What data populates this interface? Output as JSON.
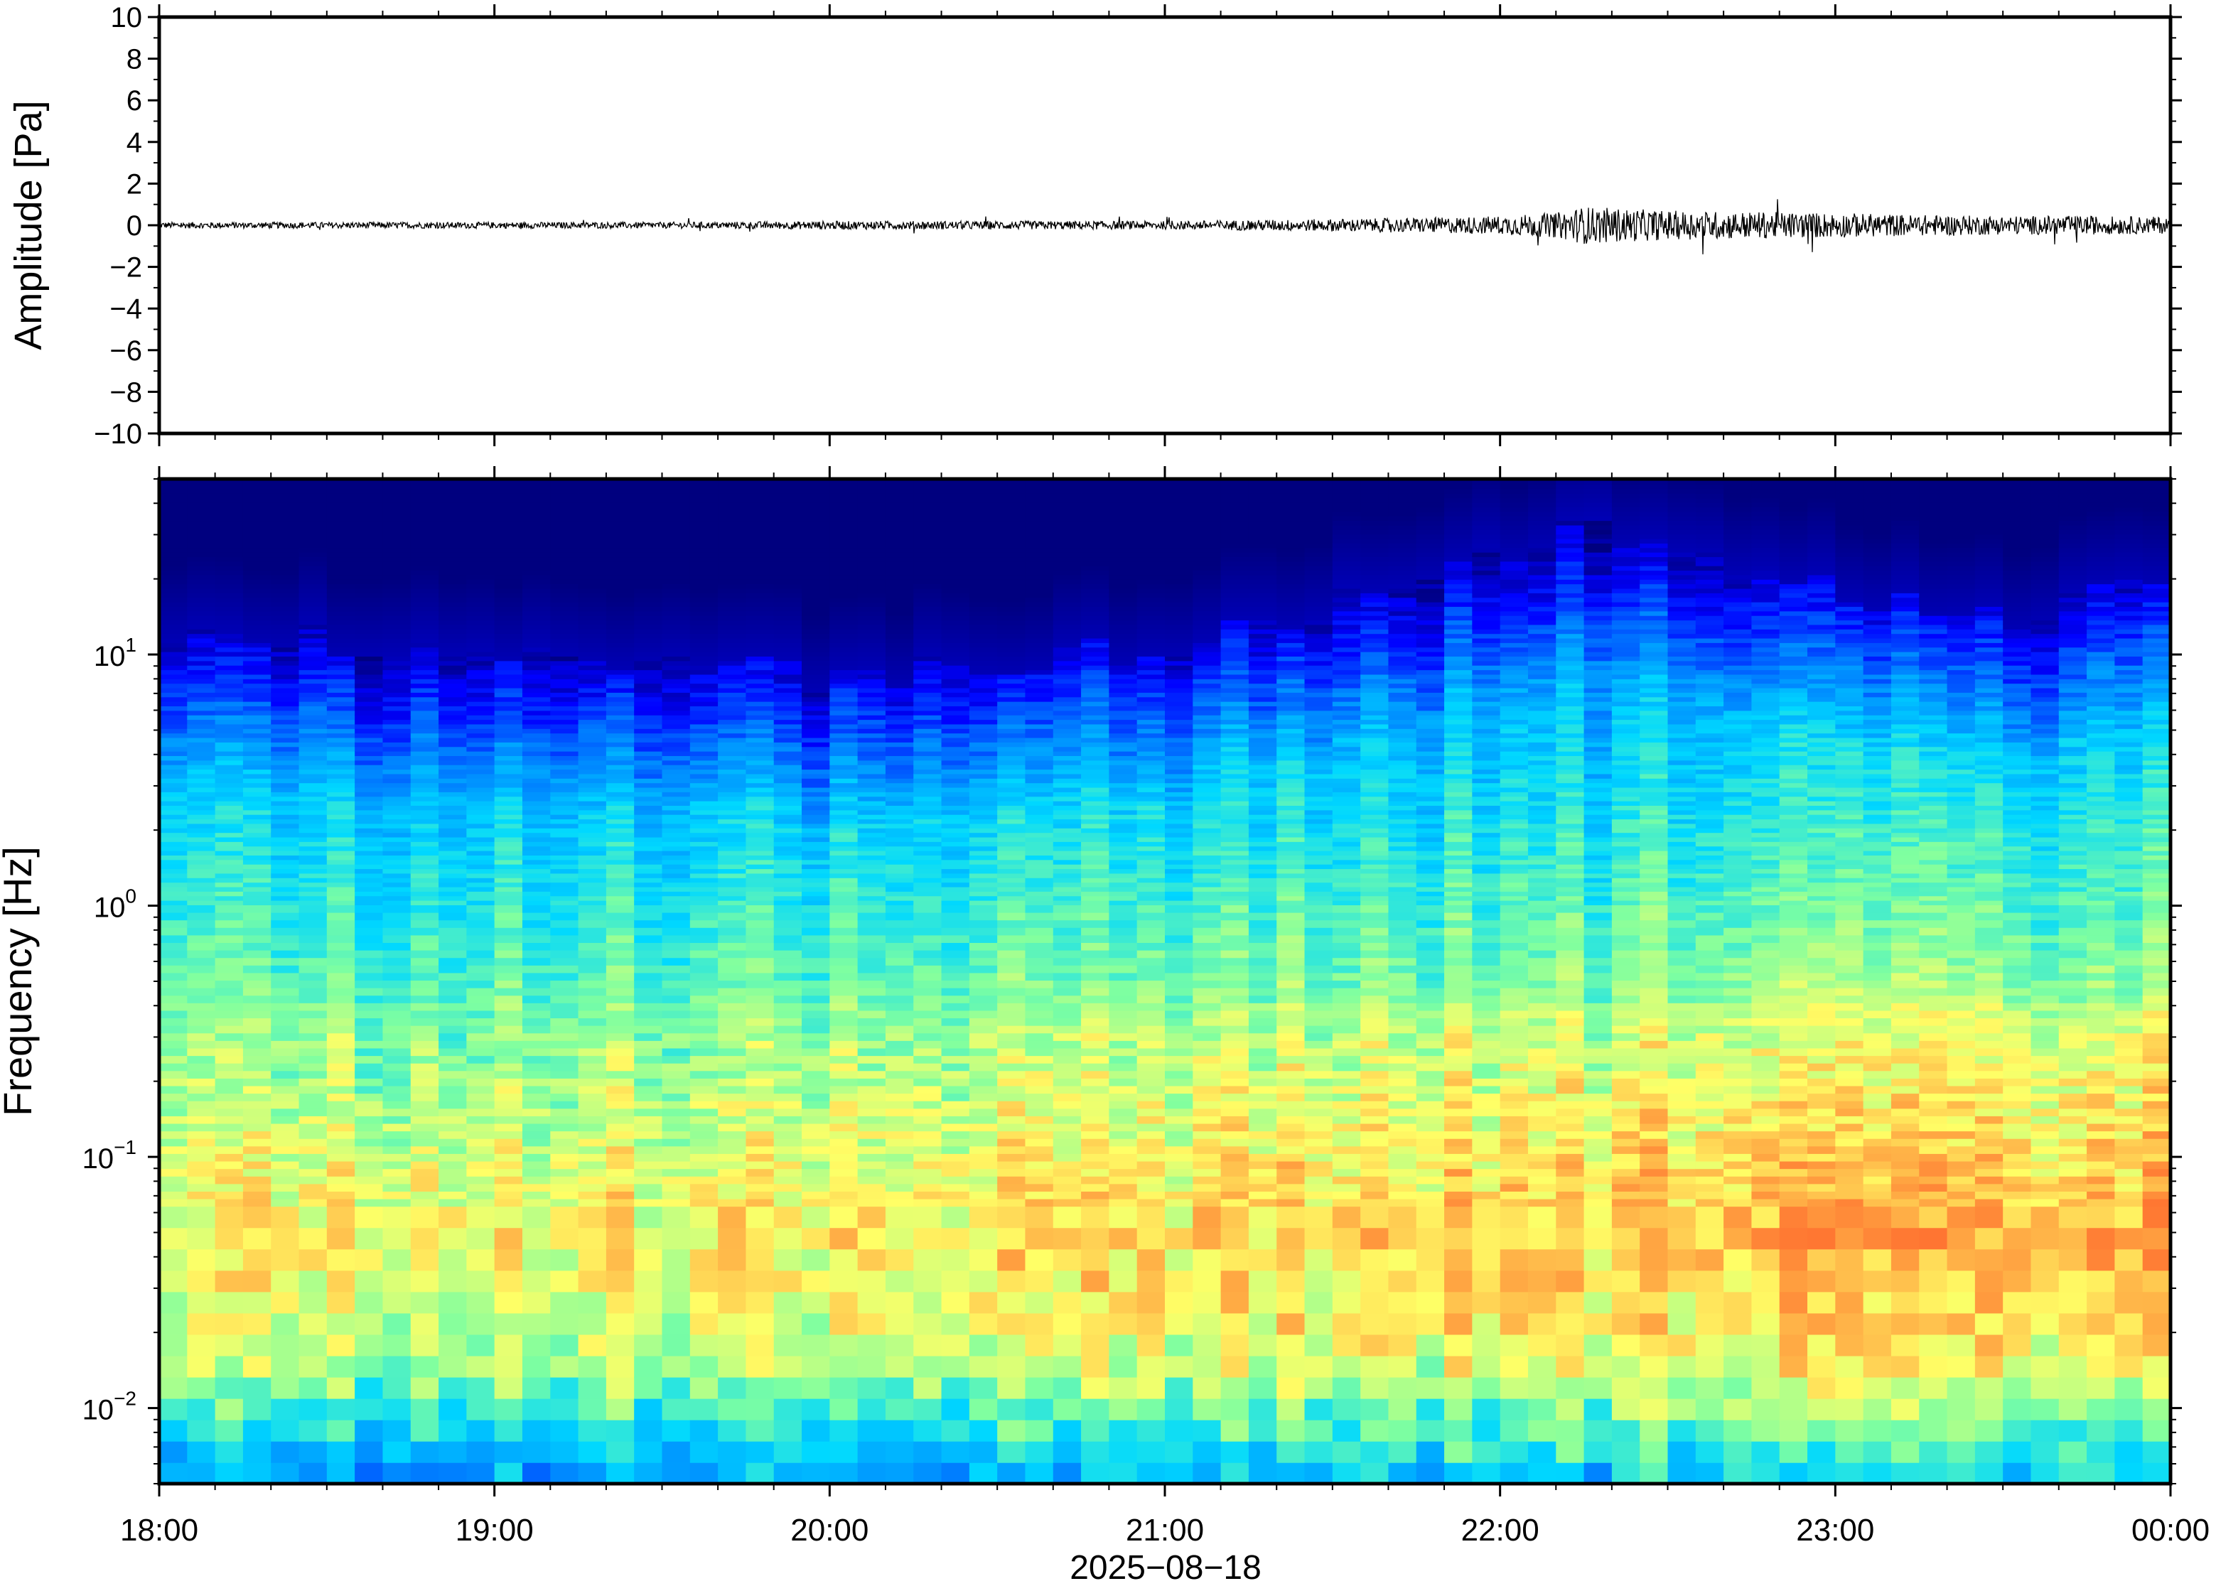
{
  "chart_data": [
    {
      "type": "line",
      "ylabel": "Amplitude [Pa]",
      "ylim": [
        -10,
        10
      ],
      "yticks": [
        "10",
        "8",
        "6",
        "4",
        "2",
        "0",
        "−2",
        "−4",
        "−6",
        "−8",
        "−10"
      ],
      "line_color": "#000000",
      "series": [
        {
          "x": [
            "18:00",
            "18:30",
            "19:00",
            "19:30",
            "20:00",
            "20:30",
            "21:00",
            "21:15",
            "21:30",
            "21:45",
            "22:00",
            "22:10",
            "22:15",
            "22:30",
            "22:45",
            "23:00",
            "23:15",
            "23:30",
            "23:45",
            "00:00"
          ],
          "envelope_amplitude": [
            0.15,
            0.15,
            0.15,
            0.15,
            0.2,
            0.2,
            0.2,
            0.25,
            0.3,
            0.35,
            0.45,
            0.6,
            0.9,
            0.7,
            0.65,
            0.6,
            0.5,
            0.45,
            0.45,
            0.4
          ]
        }
      ]
    },
    {
      "type": "heatmap",
      "ylabel": "Frequency [Hz]",
      "xlabel": "2025−08−18",
      "yscale": "log",
      "ylim": [
        0.005,
        50
      ],
      "yticks": [
        {
          "base": "10",
          "exp": "1"
        },
        {
          "base": "10",
          "exp": "0"
        },
        {
          "base": "10",
          "exp": "−1"
        },
        {
          "base": "10",
          "exp": "−2"
        }
      ],
      "x_tick_labels": [
        "18:00",
        "19:00",
        "20:00",
        "21:00",
        "22:00",
        "23:00",
        "00:00"
      ],
      "colormap": "jet",
      "colormap_stops": [
        "#00007f",
        "#0000ff",
        "#0080ff",
        "#00d8ff",
        "#7fffa0",
        "#ffff66",
        "#ffa040",
        "#ff4020"
      ],
      "description_of_power": {
        "time_points": [
          "18:00",
          "19:00",
          "20:00",
          "21:00",
          "21:30",
          "22:00",
          "22:15",
          "22:30",
          "23:00",
          "23:30",
          "00:00"
        ],
        "upper_edge_of_activity_hz": [
          12,
          11,
          8,
          11,
          16,
          25,
          33,
          28,
          18,
          14,
          20
        ]
      }
    }
  ]
}
